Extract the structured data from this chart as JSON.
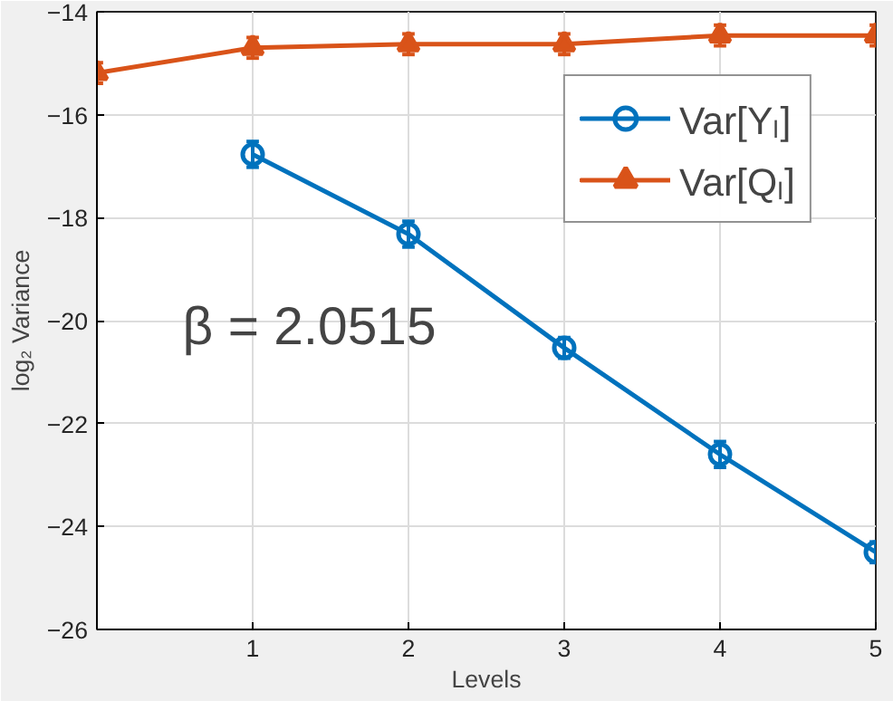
{
  "chart_data": {
    "type": "line",
    "xlabel": "Levels",
    "ylabel": "log₂ Variance",
    "x": [
      0,
      1,
      2,
      3,
      4,
      5
    ],
    "xlim": [
      0,
      5
    ],
    "xticks": [
      1,
      2,
      3,
      4,
      5
    ],
    "ylim": [
      -26,
      -14
    ],
    "yticks": [
      -26,
      -24,
      -22,
      -20,
      -18,
      -16,
      -14
    ],
    "grid": true,
    "legend": "top right",
    "line_style": "solid",
    "annotations": [
      "β = 2.0515"
    ],
    "series": [
      {
        "name": "Var[Yₗ]",
        "color": "#0072bd",
        "marker": "circle",
        "values": [
          null,
          -16.77,
          -18.32,
          -20.53,
          -22.6,
          -24.5
        ],
        "errors": [
          null,
          0.25,
          0.25,
          0.2,
          0.25,
          0.2
        ]
      },
      {
        "name": "Var[Qₗ]",
        "color": "#d95319",
        "marker": "triangle",
        "values": [
          -15.19,
          -14.7,
          -14.63,
          -14.63,
          -14.46,
          -14.46
        ],
        "errors": [
          0.2,
          0.2,
          0.2,
          0.2,
          0.2,
          0.2
        ]
      }
    ]
  }
}
